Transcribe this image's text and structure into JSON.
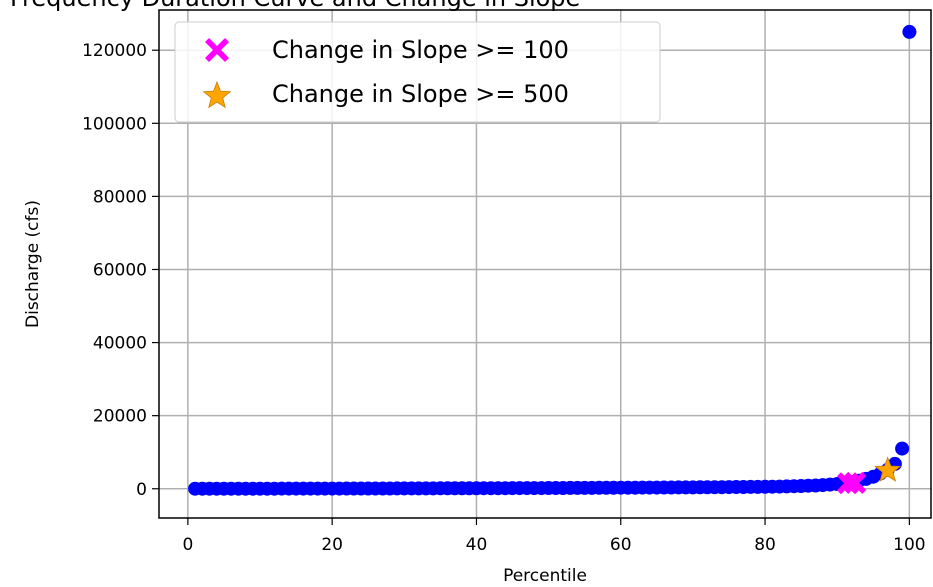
{
  "chart_data": {
    "type": "scatter",
    "title": "Frequency Duration Curve and Change in Slope",
    "xlabel": "Percentile",
    "ylabel": "Discharge (cfs)",
    "xlim": [
      -4,
      103
    ],
    "ylim": [
      -8000,
      131000
    ],
    "xticks": [
      0,
      20,
      40,
      60,
      80,
      100
    ],
    "yticks": [
      0,
      20000,
      40000,
      60000,
      80000,
      100000,
      120000
    ],
    "grid": true,
    "legend_position": "upper-left",
    "series": [
      {
        "color": "#0000ff",
        "marker": "circle",
        "x": [
          1,
          2,
          3,
          4,
          5,
          6,
          7,
          8,
          9,
          10,
          11,
          12,
          13,
          14,
          15,
          16,
          17,
          18,
          19,
          20,
          21,
          22,
          23,
          24,
          25,
          26,
          27,
          28,
          29,
          30,
          31,
          32,
          33,
          34,
          35,
          36,
          37,
          38,
          39,
          40,
          41,
          42,
          43,
          44,
          45,
          46,
          47,
          48,
          49,
          50,
          51,
          52,
          53,
          54,
          55,
          56,
          57,
          58,
          59,
          60,
          61,
          62,
          63,
          64,
          65,
          66,
          67,
          68,
          69,
          70,
          71,
          72,
          73,
          74,
          75,
          76,
          77,
          78,
          79,
          80,
          81,
          82,
          83,
          84,
          85,
          86,
          87,
          88,
          89,
          90,
          91,
          92,
          93,
          94,
          95,
          96,
          97,
          98,
          99,
          100
        ],
        "y": [
          8,
          10,
          12,
          14,
          16,
          18,
          20,
          22,
          24,
          26,
          28,
          30,
          33,
          36,
          39,
          42,
          45,
          48,
          51,
          54,
          57,
          60,
          64,
          68,
          72,
          76,
          80,
          84,
          88,
          92,
          96,
          100,
          105,
          110,
          115,
          120,
          125,
          130,
          135,
          140,
          146,
          152,
          158,
          164,
          170,
          176,
          182,
          188,
          194,
          200,
          208,
          216,
          224,
          232,
          240,
          248,
          256,
          264,
          272,
          280,
          290,
          300,
          310,
          320,
          330,
          340,
          350,
          360,
          370,
          380,
          395,
          410,
          425,
          440,
          455,
          470,
          485,
          500,
          520,
          540,
          570,
          600,
          650,
          700,
          760,
          830,
          900,
          1000,
          1150,
          1300,
          1500,
          1800,
          2200,
          2700,
          3300,
          4200,
          5200,
          6800,
          11000,
          125000
        ]
      }
    ],
    "highlight_series": [
      {
        "name": "Change in Slope >= 100",
        "color": "#ff00ff",
        "marker": "x",
        "points": [
          [
            91.5,
            1500
          ],
          [
            92.5,
            1600
          ]
        ]
      },
      {
        "name": "Change in Slope >= 500",
        "color": "#ffa500",
        "marker": "star",
        "points": [
          [
            97,
            5000
          ]
        ]
      }
    ]
  }
}
